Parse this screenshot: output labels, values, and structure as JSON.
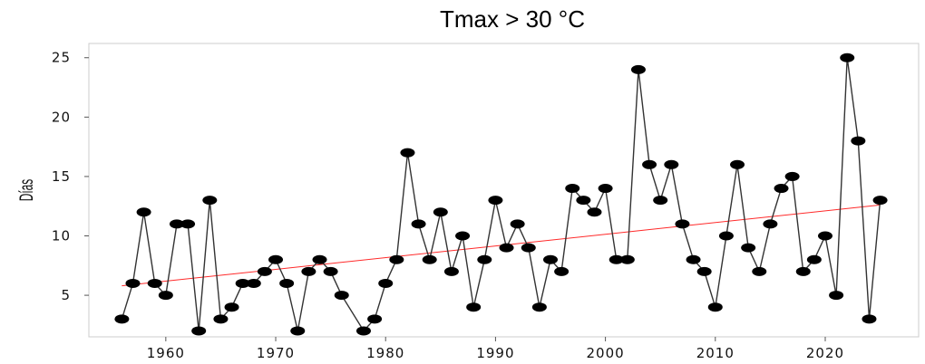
{
  "chart_data": {
    "type": "line",
    "title": "Tmax > 30 °C",
    "xlabel": "",
    "ylabel": "Días",
    "xlim": [
      1953,
      2028.5
    ],
    "ylim": [
      1.5,
      26.2
    ],
    "x_ticks": [
      1960,
      1970,
      1980,
      1990,
      2000,
      2010,
      2020
    ],
    "y_ticks": [
      5,
      10,
      15,
      20,
      25
    ],
    "grid": false,
    "legend": "none",
    "series": [
      {
        "values": [
          [
            1956,
            3
          ],
          [
            1957,
            6
          ],
          [
            1958,
            12
          ],
          [
            1959,
            6
          ],
          [
            1960,
            5
          ],
          [
            1961,
            11
          ],
          [
            1962,
            11
          ],
          [
            1963,
            2
          ],
          [
            1964,
            13
          ],
          [
            1965,
            3
          ],
          [
            1966,
            4
          ],
          [
            1967,
            6
          ],
          [
            1968,
            6
          ],
          [
            1969,
            7
          ],
          [
            1970,
            8
          ],
          [
            1971,
            6
          ],
          [
            1972,
            2
          ],
          [
            1973,
            7
          ],
          [
            1974,
            8
          ],
          [
            1975,
            7
          ],
          [
            1976,
            5
          ],
          [
            1978,
            2
          ],
          [
            1979,
            3
          ],
          [
            1980,
            6
          ],
          [
            1981,
            8
          ],
          [
            1982,
            17
          ],
          [
            1983,
            11
          ],
          [
            1984,
            8
          ],
          [
            1985,
            12
          ],
          [
            1986,
            7
          ],
          [
            1987,
            10
          ],
          [
            1988,
            4
          ],
          [
            1989,
            8
          ],
          [
            1990,
            13
          ],
          [
            1991,
            9
          ],
          [
            1992,
            11
          ],
          [
            1993,
            9
          ],
          [
            1994,
            4
          ],
          [
            1995,
            8
          ],
          [
            1996,
            7
          ],
          [
            1997,
            14
          ],
          [
            1998,
            13
          ],
          [
            1999,
            12
          ],
          [
            2000,
            14
          ],
          [
            2001,
            8
          ],
          [
            2002,
            8
          ],
          [
            2003,
            24
          ],
          [
            2004,
            16
          ],
          [
            2005,
            13
          ],
          [
            2006,
            16
          ],
          [
            2007,
            11
          ],
          [
            2008,
            8
          ],
          [
            2009,
            7
          ],
          [
            2010,
            4
          ],
          [
            2011,
            10
          ],
          [
            2012,
            16
          ],
          [
            2013,
            9
          ],
          [
            2014,
            7
          ],
          [
            2015,
            11
          ],
          [
            2016,
            14
          ],
          [
            2017,
            15
          ],
          [
            2018,
            7
          ],
          [
            2019,
            8
          ],
          [
            2020,
            10
          ],
          [
            2021,
            5
          ],
          [
            2022,
            25
          ],
          [
            2023,
            18
          ],
          [
            2024,
            3
          ],
          [
            2025,
            13
          ]
        ]
      }
    ],
    "trend": {
      "x": [
        1956,
        2025
      ],
      "y": [
        5.8,
        12.6
      ]
    },
    "colors": {
      "line": "#333333",
      "marker": "#000000",
      "trend": "#ff2a2a",
      "axis": "#cccccc"
    }
  }
}
